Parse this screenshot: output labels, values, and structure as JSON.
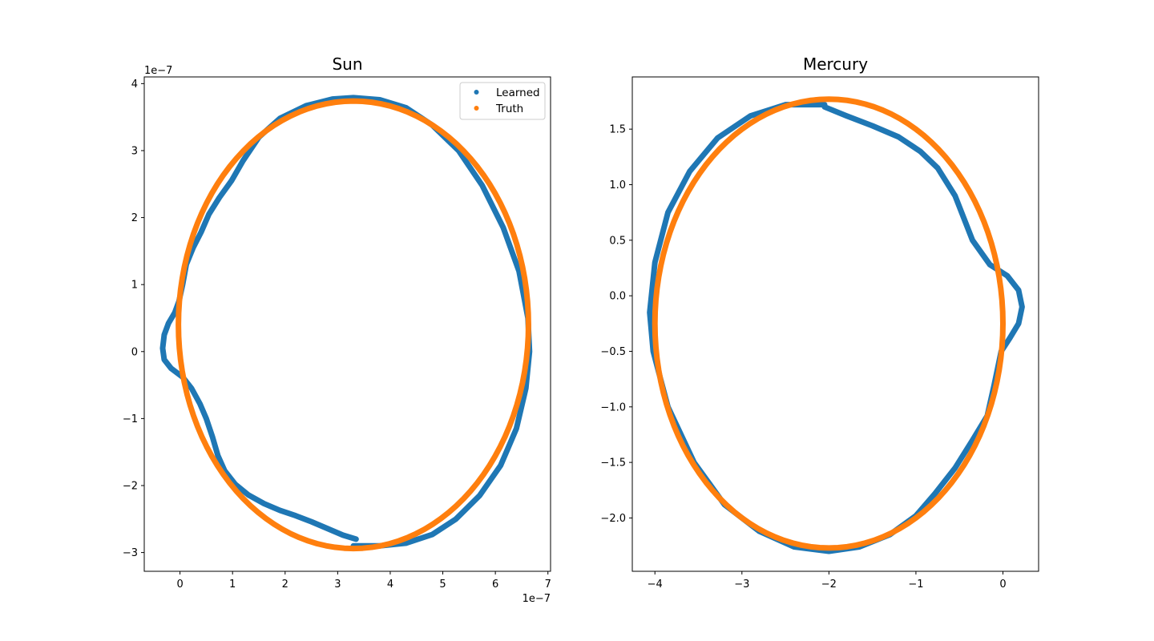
{
  "chart_data": [
    {
      "type": "scatter",
      "title": "Sun",
      "xlabel": "",
      "ylabel": "",
      "x_offset_label": "1e−7",
      "y_offset_label": "1e−7",
      "xlim": [
        -0.68,
        7.05
      ],
      "ylim": [
        -3.28,
        4.1
      ],
      "xticks": [
        0,
        1,
        2,
        3,
        4,
        5,
        6,
        7
      ],
      "xtick_labels": [
        "0",
        "1",
        "2",
        "3",
        "4",
        "5",
        "6",
        "7"
      ],
      "yticks": [
        -3,
        -2,
        -1,
        0,
        1,
        2,
        3,
        4
      ],
      "ytick_labels": [
        "−3",
        "−2",
        "−1",
        "0",
        "1",
        "2",
        "3",
        "4"
      ],
      "legend": {
        "position": "top-right",
        "entries": [
          "Learned",
          "Truth"
        ]
      },
      "series": [
        {
          "name": "Learned",
          "color": "#1f77b4",
          "points": [
            [
              3.35,
              -2.8
            ],
            [
              3.1,
              -2.74
            ],
            [
              2.8,
              -2.64
            ],
            [
              2.5,
              -2.54
            ],
            [
              2.2,
              -2.45
            ],
            [
              1.9,
              -2.37
            ],
            [
              1.6,
              -2.27
            ],
            [
              1.3,
              -2.14
            ],
            [
              1.05,
              -1.98
            ],
            [
              0.85,
              -1.78
            ],
            [
              0.72,
              -1.55
            ],
            [
              0.62,
              -1.28
            ],
            [
              0.5,
              -1.0
            ],
            [
              0.38,
              -0.78
            ],
            [
              0.22,
              -0.55
            ],
            [
              0.05,
              -0.38
            ],
            [
              -0.17,
              -0.25
            ],
            [
              -0.3,
              -0.12
            ],
            [
              -0.33,
              0.05
            ],
            [
              -0.3,
              0.25
            ],
            [
              -0.22,
              0.42
            ],
            [
              -0.1,
              0.58
            ],
            [
              -0.02,
              0.75
            ],
            [
              0.05,
              1.0
            ],
            [
              0.12,
              1.3
            ],
            [
              0.25,
              1.55
            ],
            [
              0.4,
              1.78
            ],
            [
              0.55,
              2.05
            ],
            [
              0.75,
              2.3
            ],
            [
              0.98,
              2.55
            ],
            [
              1.2,
              2.85
            ],
            [
              1.5,
              3.2
            ],
            [
              1.9,
              3.48
            ],
            [
              2.4,
              3.67
            ],
            [
              2.9,
              3.77
            ],
            [
              3.3,
              3.79
            ],
            [
              3.8,
              3.76
            ],
            [
              4.3,
              3.64
            ],
            [
              4.8,
              3.38
            ],
            [
              5.3,
              3.0
            ],
            [
              5.75,
              2.48
            ],
            [
              6.15,
              1.85
            ],
            [
              6.45,
              1.2
            ],
            [
              6.62,
              0.5
            ],
            [
              6.65,
              0.0
            ],
            [
              6.58,
              -0.55
            ],
            [
              6.4,
              -1.15
            ],
            [
              6.1,
              -1.7
            ],
            [
              5.7,
              -2.15
            ],
            [
              5.25,
              -2.5
            ],
            [
              4.8,
              -2.73
            ],
            [
              4.3,
              -2.86
            ],
            [
              3.8,
              -2.9
            ],
            [
              3.3,
              -2.9
            ]
          ]
        },
        {
          "name": "Truth",
          "color": "#ff7f0e",
          "ellipse": {
            "cx": 3.3,
            "cy": 0.4,
            "rx": 3.33,
            "ry": 3.34
          }
        }
      ]
    },
    {
      "type": "scatter",
      "title": "Mercury",
      "xlabel": "",
      "ylabel": "",
      "xlim": [
        -4.26,
        0.41
      ],
      "ylim": [
        -2.48,
        1.97
      ],
      "xticks": [
        -4,
        -3,
        -2,
        -1,
        0
      ],
      "xtick_labels": [
        "−4",
        "−3",
        "−2",
        "−1",
        "0"
      ],
      "yticks": [
        -2.0,
        -1.5,
        -1.0,
        -0.5,
        0.0,
        0.5,
        1.0,
        1.5
      ],
      "ytick_labels": [
        "−2.0",
        "−1.5",
        "−1.0",
        "−0.5",
        "0.0",
        "0.5",
        "1.0",
        "1.5"
      ],
      "series": [
        {
          "name": "",
          "color": "#1f77b4",
          "points": [
            [
              -2.05,
              1.7
            ],
            [
              -1.8,
              1.62
            ],
            [
              -1.5,
              1.53
            ],
            [
              -1.2,
              1.43
            ],
            [
              -0.95,
              1.3
            ],
            [
              -0.75,
              1.15
            ],
            [
              -0.55,
              0.9
            ],
            [
              -0.35,
              0.5
            ],
            [
              -0.15,
              0.28
            ],
            [
              0.05,
              0.18
            ],
            [
              0.18,
              0.05
            ],
            [
              0.22,
              -0.1
            ],
            [
              0.18,
              -0.25
            ],
            [
              0.08,
              -0.38
            ],
            [
              -0.02,
              -0.5
            ],
            [
              -0.1,
              -0.8
            ],
            [
              -0.18,
              -1.08
            ],
            [
              -0.35,
              -1.3
            ],
            [
              -0.55,
              -1.55
            ],
            [
              -0.78,
              -1.78
            ],
            [
              -1.0,
              -1.98
            ],
            [
              -1.3,
              -2.15
            ],
            [
              -1.65,
              -2.26
            ],
            [
              -2.0,
              -2.3
            ],
            [
              -2.4,
              -2.26
            ],
            [
              -2.8,
              -2.12
            ],
            [
              -3.2,
              -1.88
            ],
            [
              -3.55,
              -1.5
            ],
            [
              -3.85,
              -1.0
            ],
            [
              -4.02,
              -0.5
            ],
            [
              -4.06,
              -0.15
            ],
            [
              -4.0,
              0.3
            ],
            [
              -3.85,
              0.75
            ],
            [
              -3.6,
              1.12
            ],
            [
              -3.28,
              1.42
            ],
            [
              -2.9,
              1.62
            ],
            [
              -2.5,
              1.72
            ],
            [
              -2.05,
              1.72
            ]
          ]
        },
        {
          "name": "",
          "color": "#ff7f0e",
          "ellipse": {
            "cx": -2.0,
            "cy": -0.25,
            "rx": 2.0,
            "ry": 2.02
          }
        }
      ]
    }
  ]
}
